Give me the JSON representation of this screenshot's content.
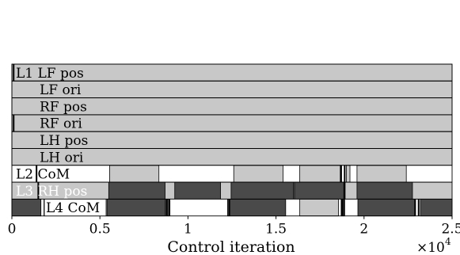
{
  "chart_data": {
    "type": "gantt",
    "xlabel": "Control iteration",
    "x_multiplier": "×10",
    "x_multiplier_exp": "4",
    "xlim": [
      0,
      2.5
    ],
    "xticks": [
      0,
      0.5,
      1,
      1.5,
      2,
      2.5
    ],
    "xtick_labels": [
      "0",
      "0.5",
      "1",
      "1.5",
      "2",
      "2.5"
    ],
    "level_colors": {
      "fill_light": "#c8c8c8",
      "fill_dark": "#4a4a4a",
      "white": "#ffffff",
      "edge": "#000000"
    },
    "rows": [
      {
        "label": "L1 LF pos",
        "label_color": "light",
        "background": "#ffffff",
        "segments": [
          {
            "start": 0,
            "end": 2.5,
            "color": "#c8c8c8"
          }
        ],
        "markers": [
          0.01
        ]
      },
      {
        "label": "LF ori",
        "label_color": "light",
        "background": "#ffffff",
        "segments": [
          {
            "start": 0,
            "end": 2.5,
            "color": "#c8c8c8"
          }
        ],
        "markers": []
      },
      {
        "label": "RF pos",
        "label_color": "light",
        "background": "#ffffff",
        "segments": [
          {
            "start": 0,
            "end": 2.5,
            "color": "#c8c8c8"
          }
        ],
        "markers": []
      },
      {
        "label": "RF ori",
        "label_color": "light",
        "background": "#ffffff",
        "segments": [
          {
            "start": 0,
            "end": 2.5,
            "color": "#c8c8c8"
          }
        ],
        "markers": [
          0.01
        ]
      },
      {
        "label": "LH pos",
        "label_color": "light",
        "background": "#ffffff",
        "segments": [
          {
            "start": 0,
            "end": 2.5,
            "color": "#c8c8c8"
          }
        ],
        "markers": []
      },
      {
        "label": "LH ori",
        "label_color": "light",
        "background": "#ffffff",
        "segments": [
          {
            "start": 0,
            "end": 2.5,
            "color": "#c8c8c8"
          }
        ],
        "markers": []
      },
      {
        "label": "L2 CoM",
        "label_color": "light",
        "background": "#ffffff",
        "segments": [
          {
            "start": 0.555,
            "end": 0.835,
            "color": "#c8c8c8"
          },
          {
            "start": 1.26,
            "end": 1.54,
            "color": "#c8c8c8"
          },
          {
            "start": 1.635,
            "end": 1.865,
            "color": "#c8c8c8"
          },
          {
            "start": 1.9,
            "end": 1.92,
            "color": "#c8c8c8"
          },
          {
            "start": 1.96,
            "end": 2.24,
            "color": "#c8c8c8"
          }
        ],
        "markers": [
          0.14,
          1.87,
          1.89
        ]
      },
      {
        "label": "L3 RH pos",
        "label_color": "dark",
        "background": "#c8c8c8",
        "segments": [
          {
            "start": 0.55,
            "end": 0.87,
            "color": "#4a4a4a"
          },
          {
            "start": 0.925,
            "end": 1.185,
            "color": "#4a4a4a"
          },
          {
            "start": 1.245,
            "end": 1.6,
            "color": "#4a4a4a"
          },
          {
            "start": 1.605,
            "end": 1.885,
            "color": "#4a4a4a"
          },
          {
            "start": 1.96,
            "end": 2.275,
            "color": "#4a4a4a"
          }
        ],
        "markers": [
          0.15,
          1.89
        ]
      },
      {
        "label": "L4 CoM",
        "label_color": "dark",
        "background": "#ffffff",
        "segments": [
          {
            "start": 0,
            "end": 0.165,
            "color": "#4a4a4a"
          },
          {
            "start": 0.54,
            "end": 0.87,
            "color": "#4a4a4a"
          },
          {
            "start": 0.875,
            "end": 0.895,
            "color": "#4a4a4a"
          },
          {
            "start": 1.225,
            "end": 1.555,
            "color": "#4a4a4a"
          },
          {
            "start": 1.635,
            "end": 1.855,
            "color": "#c8c8c8"
          },
          {
            "start": 1.87,
            "end": 1.89,
            "color": "#c8c8c8"
          },
          {
            "start": 1.965,
            "end": 2.29,
            "color": "#4a4a4a"
          },
          {
            "start": 2.32,
            "end": 2.5,
            "color": "#4a4a4a"
          }
        ],
        "markers": [
          0.185,
          0.88,
          0.895,
          1.235,
          1.875,
          1.885,
          2.29,
          2.31
        ]
      }
    ]
  }
}
